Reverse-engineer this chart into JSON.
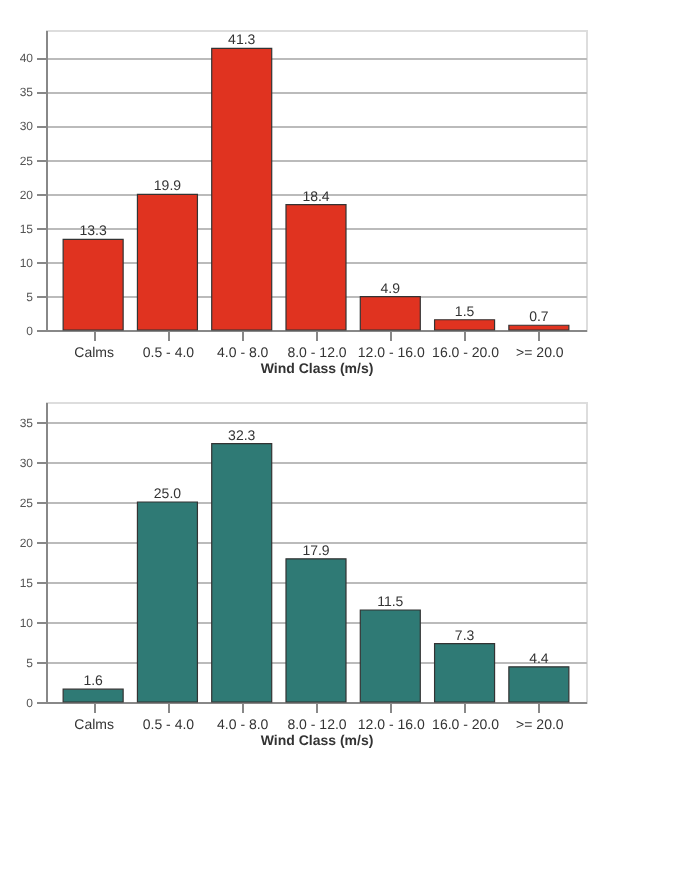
{
  "chart_data": [
    {
      "type": "bar",
      "xlabel": "Wind Class (m/s)",
      "categories": [
        "Calms",
        "0.5 -  4.0",
        "4.0 -  8.0",
        "8.0 - 12.0",
        "12.0 - 16.0",
        "16.0 - 20.0",
        ">= 20.0"
      ],
      "values": [
        13.3,
        19.9,
        41.3,
        18.4,
        4.9,
        1.5,
        0.7
      ],
      "value_labels": [
        "13.3",
        "19.9",
        "41.3",
        "18.4",
        "4.9",
        "1.5",
        "0.7"
      ],
      "color": "#e03320",
      "ylim": [
        0,
        44
      ],
      "yticks": [
        0,
        5,
        10,
        15,
        20,
        25,
        30,
        35,
        40
      ],
      "grid": "y"
    },
    {
      "type": "bar",
      "xlabel": "Wind Class (m/s)",
      "categories": [
        "Calms",
        "0.5 -  4.0",
        "4.0 -  8.0",
        "8.0 - 12.0",
        "12.0 - 16.0",
        "16.0 - 20.0",
        ">= 20.0"
      ],
      "values": [
        1.6,
        25,
        32.3,
        17.9,
        11.5,
        7.3,
        4.4
      ],
      "value_labels": [
        "1.6",
        "25.0",
        "32.3",
        "17.9",
        "11.5",
        "7.3",
        "4.4"
      ],
      "color": "#2f7a75",
      "ylim": [
        0,
        37.5
      ],
      "yticks": [
        0,
        5,
        10,
        15,
        20,
        25,
        30,
        35
      ],
      "grid": "y"
    }
  ]
}
